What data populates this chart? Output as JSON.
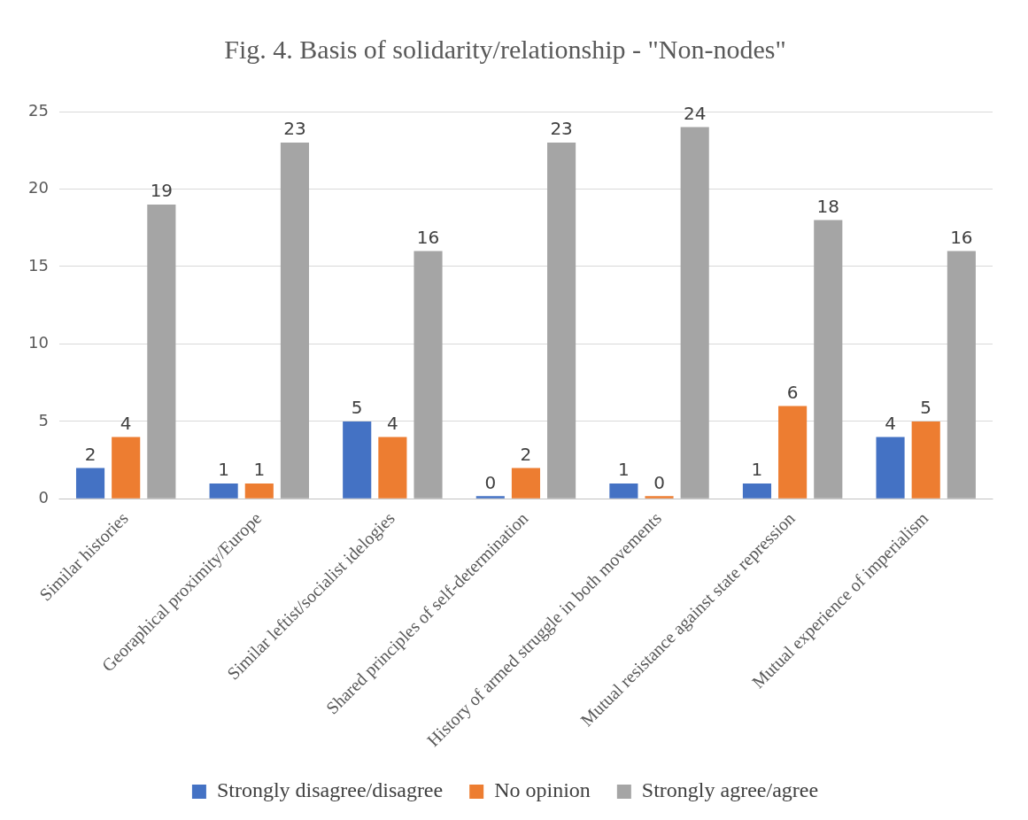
{
  "chart_data": {
    "type": "bar",
    "title": "Fig. 4. Basis of solidarity/relationship - \"Non-nodes\"",
    "categories": [
      "Similar histories",
      "Georaphical proximity/Europe",
      "Similar leftist/socialist idelogies",
      "Shared principles of self-determination",
      "History of armed struggle in both movements",
      "Mutual resistance against state repression",
      "Mutual experience of imperialism"
    ],
    "series": [
      {
        "name": "Strongly disagree/disagree",
        "color": "#4472c4",
        "values": [
          2,
          1,
          5,
          0,
          1,
          1,
          4
        ]
      },
      {
        "name": "No opinion",
        "color": "#ed7d31",
        "values": [
          4,
          1,
          4,
          2,
          0,
          6,
          5
        ]
      },
      {
        "name": "Strongly agree/agree",
        "color": "#a5a5a5",
        "values": [
          19,
          23,
          16,
          23,
          24,
          18,
          16
        ]
      }
    ],
    "ylim": [
      0,
      25
    ],
    "yticks": [
      0,
      5,
      10,
      15,
      20,
      25
    ],
    "grid": "y",
    "legend": "bottom",
    "data_labels": true
  }
}
